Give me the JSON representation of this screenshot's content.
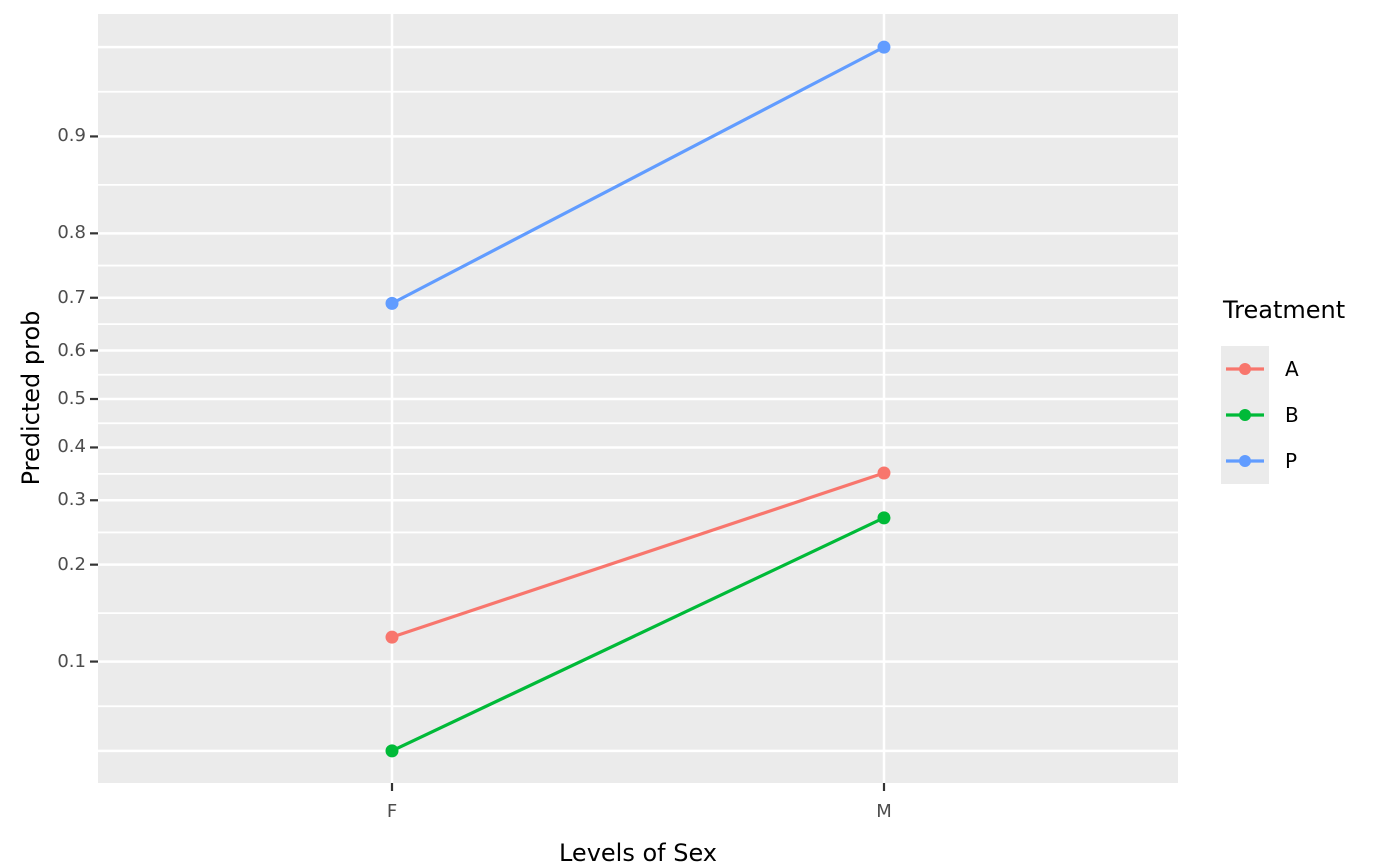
{
  "chart_data": {
    "type": "line",
    "title": "",
    "xlabel": "Levels of Sex",
    "ylabel": "Predicted prob",
    "x": [
      "F",
      "M"
    ],
    "y_scale": "logit",
    "ylim": [
      0.04,
      0.96
    ],
    "grid": true,
    "legend_position": "right",
    "y_gridlines_major": [
      0.05,
      0.1,
      0.2,
      0.3,
      0.4,
      0.5,
      0.6,
      0.7,
      0.8,
      0.9,
      0.95
    ],
    "y_ticks": [
      {
        "value": 0.9,
        "label": "0.9"
      },
      {
        "value": 0.8,
        "label": "0.8"
      },
      {
        "value": 0.7,
        "label": "0.7"
      },
      {
        "value": 0.6,
        "label": "0.6"
      },
      {
        "value": 0.5,
        "label": "0.5"
      },
      {
        "value": 0.4,
        "label": "0.4"
      },
      {
        "value": 0.3,
        "label": "0.3"
      },
      {
        "value": 0.2,
        "label": "0.2"
      },
      {
        "value": 0.1,
        "label": "0.1"
      }
    ],
    "series": [
      {
        "name": "A",
        "color": "#F8766D",
        "values": [
          0.12,
          0.35
        ]
      },
      {
        "name": "B",
        "color": "#00BA38",
        "values": [
          0.05,
          0.27
        ]
      },
      {
        "name": "P",
        "color": "#619CFF",
        "values": [
          0.69,
          0.95
        ]
      }
    ],
    "legend": {
      "title": "Treatment",
      "entries": [
        "A",
        "B",
        "P"
      ]
    },
    "colors": {
      "panel_background": "#EBEBEB",
      "gridline": "#FFFFFF",
      "tick_mark": "#333333",
      "tick_label_text": "#4D4D4D",
      "axis_title_text": "#000000"
    }
  }
}
